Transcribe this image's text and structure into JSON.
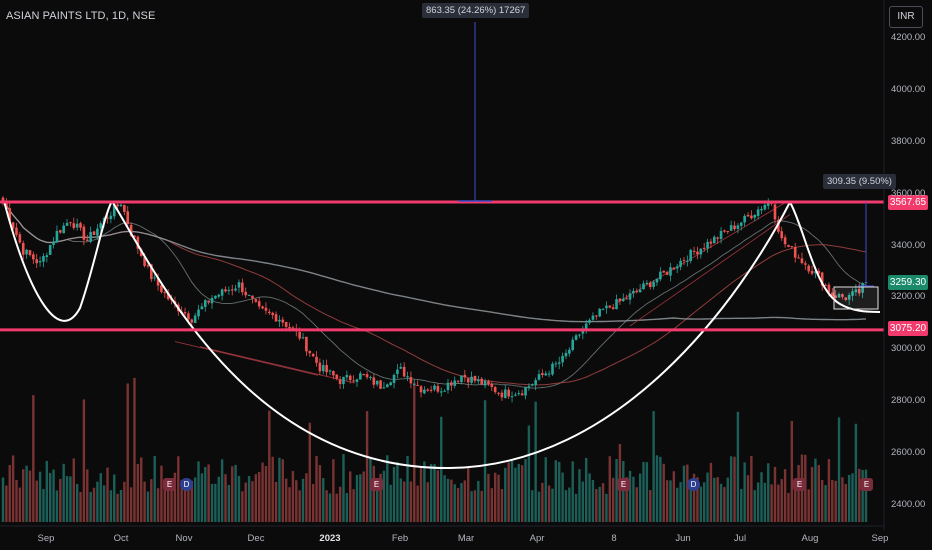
{
  "header": {
    "symbol": "ASIAN PAINTS LTD, 1D, NSE",
    "currency": "INR"
  },
  "measure": {
    "top_label": "863.35 (24.26%) 17267",
    "right_label": "309.35 (9.50%)"
  },
  "price_tags": {
    "resistance": "3567.65",
    "current": "3259.30",
    "support": "3075.20"
  },
  "colors": {
    "resistance": "#f23b6c",
    "support": "#f23b6c",
    "current": "#1b8a6b",
    "bull": "#26a69a",
    "bear": "#ef5350",
    "pattern": "#ffffff"
  },
  "badges": [
    {
      "label": "E",
      "kind": "earnings"
    },
    {
      "label": "D",
      "kind": "dividend"
    },
    {
      "label": "E",
      "kind": "earnings"
    },
    {
      "label": "E",
      "kind": "earnings"
    },
    {
      "label": "D",
      "kind": "dividend"
    },
    {
      "label": "E",
      "kind": "earnings"
    },
    {
      "label": "E",
      "kind": "earnings"
    }
  ],
  "chart_data": {
    "type": "candlestick",
    "title": "ASIAN PAINTS LTD, 1D, NSE",
    "y_ticks": [
      "4200.00",
      "4000.00",
      "3800.00",
      "3600.00",
      "3400.00",
      "3200.00",
      "3000.00",
      "2800.00",
      "2600.00",
      "2400.00"
    ],
    "x_ticks": [
      {
        "label": "Sep",
        "bold": false
      },
      {
        "label": "Oct",
        "bold": false
      },
      {
        "label": "Nov",
        "bold": false
      },
      {
        "label": "Dec",
        "bold": false
      },
      {
        "label": "2023",
        "bold": true
      },
      {
        "label": "Feb",
        "bold": false
      },
      {
        "label": "Mar",
        "bold": false
      },
      {
        "label": "Apr",
        "bold": false
      },
      {
        "label": "8",
        "bold": false
      },
      {
        "label": "Jun",
        "bold": false
      },
      {
        "label": "Jul",
        "bold": false
      },
      {
        "label": "Aug",
        "bold": false
      },
      {
        "label": "Sep",
        "bold": false
      }
    ],
    "ylim": [
      2350,
      4280
    ],
    "resistance": 3567.65,
    "support": 3075.2,
    "last_close": 3259.3,
    "path_keypoints": [
      [
        0,
        3570
      ],
      [
        6,
        3380
      ],
      [
        11,
        3330
      ],
      [
        16,
        3450
      ],
      [
        20,
        3500
      ],
      [
        25,
        3420
      ],
      [
        30,
        3500
      ],
      [
        35,
        3567
      ],
      [
        38,
        3450
      ],
      [
        44,
        3280
      ],
      [
        50,
        3180
      ],
      [
        56,
        3120
      ],
      [
        62,
        3200
      ],
      [
        70,
        3250
      ],
      [
        76,
        3150
      ],
      [
        82,
        3120
      ],
      [
        88,
        3050
      ],
      [
        94,
        2930
      ],
      [
        100,
        2880
      ],
      [
        106,
        2900
      ],
      [
        112,
        2860
      ],
      [
        118,
        2920
      ],
      [
        124,
        2850
      ],
      [
        130,
        2850
      ],
      [
        136,
        2900
      ],
      [
        142,
        2870
      ],
      [
        148,
        2830
      ],
      [
        154,
        2840
      ],
      [
        160,
        2900
      ],
      [
        166,
        2960
      ],
      [
        172,
        3080
      ],
      [
        178,
        3150
      ],
      [
        184,
        3190
      ],
      [
        190,
        3240
      ],
      [
        196,
        3290
      ],
      [
        202,
        3350
      ],
      [
        208,
        3400
      ],
      [
        214,
        3450
      ],
      [
        220,
        3500
      ],
      [
        226,
        3560
      ],
      [
        228,
        3567
      ],
      [
        231,
        3420
      ],
      [
        234,
        3380
      ],
      [
        238,
        3330
      ],
      [
        242,
        3280
      ],
      [
        246,
        3210
      ],
      [
        250,
        3200
      ],
      [
        254,
        3220
      ],
      [
        256,
        3259
      ]
    ]
  }
}
